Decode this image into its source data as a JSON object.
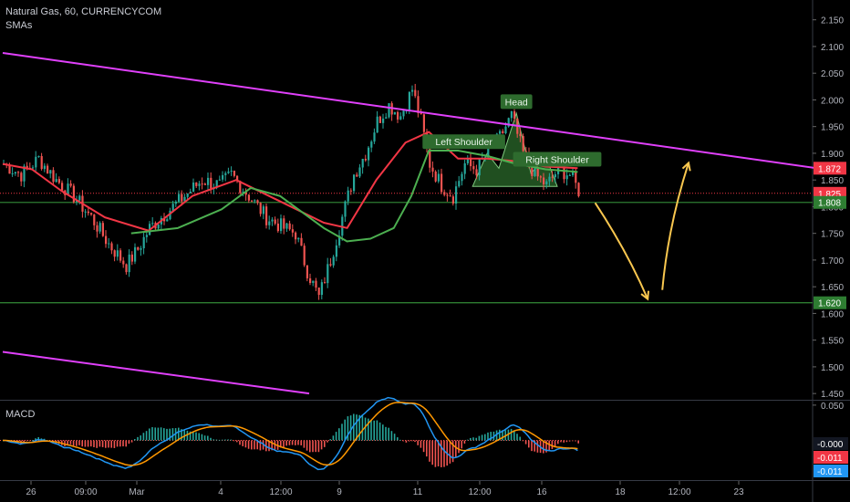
{
  "header": {
    "symbol_line": "Natural Gas, 60, CURRENCYCOM",
    "indicator_label": "SMAs"
  },
  "macd_panel": {
    "title": "MACD"
  },
  "colors": {
    "background": "#000000",
    "candle_up": "#26a69a",
    "candle_down": "#ef5350",
    "sma_fast": "#f23645",
    "sma_slow": "#4caf50",
    "trendline": "#e040fb",
    "support_line": "#2e7d32",
    "arrow": "#f9c74f",
    "pattern_fill": "#3b8f3b",
    "label_bg": "#2e6b2e"
  },
  "chart_data": [
    {
      "type": "candlestick",
      "title": "Natural Gas, 60, CURRENCYCOM",
      "y_ticks": [
        "2.150",
        "2.100",
        "2.050",
        "2.000",
        "1.950",
        "1.900",
        "1.850",
        "1.800",
        "1.750",
        "1.700",
        "1.650",
        "1.600",
        "1.550",
        "1.500",
        "1.450"
      ],
      "ylim": [
        1.44,
        2.17
      ],
      "x_ticks": [
        "26",
        "09:00",
        "Mar",
        "4",
        "12:00",
        "9",
        "11",
        "12:00",
        "16",
        "18",
        "12:00",
        "23"
      ],
      "price_badges": [
        {
          "value": 1.872,
          "label": "1.872",
          "color": "#f23645"
        },
        {
          "value": 1.825,
          "label": "1.825",
          "color": "#f23645"
        },
        {
          "value": 1.808,
          "label": "1.808",
          "color": "#2e7d32"
        },
        {
          "value": 1.62,
          "label": "1.620",
          "color": "#2e7d32"
        }
      ],
      "anchors": [
        [
          0,
          1.88
        ],
        [
          6,
          1.86
        ],
        [
          12,
          1.89
        ],
        [
          18,
          1.85
        ],
        [
          24,
          1.82
        ],
        [
          30,
          1.78
        ],
        [
          36,
          1.73
        ],
        [
          42,
          1.69
        ],
        [
          46,
          1.72
        ],
        [
          50,
          1.76
        ],
        [
          56,
          1.79
        ],
        [
          62,
          1.82
        ],
        [
          68,
          1.85
        ],
        [
          74,
          1.84
        ],
        [
          78,
          1.86
        ],
        [
          84,
          1.82
        ],
        [
          90,
          1.78
        ],
        [
          96,
          1.76
        ],
        [
          100,
          1.75
        ],
        [
          104,
          1.68
        ],
        [
          108,
          1.63
        ],
        [
          112,
          1.7
        ],
        [
          116,
          1.78
        ],
        [
          120,
          1.86
        ],
        [
          124,
          1.9
        ],
        [
          128,
          1.96
        ],
        [
          132,
          1.99
        ],
        [
          136,
          1.97
        ],
        [
          140,
          2.02
        ],
        [
          143,
          1.96
        ],
        [
          146,
          1.88
        ],
        [
          150,
          1.84
        ],
        [
          154,
          1.82
        ],
        [
          158,
          1.88
        ],
        [
          162,
          1.87
        ],
        [
          166,
          1.9
        ],
        [
          170,
          1.93
        ],
        [
          174,
          1.97
        ],
        [
          178,
          1.9
        ],
        [
          182,
          1.86
        ],
        [
          186,
          1.84
        ],
        [
          190,
          1.87
        ],
        [
          194,
          1.86
        ],
        [
          197,
          1.83
        ]
      ],
      "sma_fast": [
        [
          0,
          1.88
        ],
        [
          10,
          1.87
        ],
        [
          20,
          1.83
        ],
        [
          35,
          1.78
        ],
        [
          50,
          1.755
        ],
        [
          65,
          1.82
        ],
        [
          80,
          1.85
        ],
        [
          95,
          1.81
        ],
        [
          110,
          1.77
        ],
        [
          118,
          1.76
        ],
        [
          128,
          1.85
        ],
        [
          138,
          1.92
        ],
        [
          146,
          1.94
        ],
        [
          156,
          1.89
        ],
        [
          166,
          1.89
        ],
        [
          176,
          1.885
        ],
        [
          186,
          1.875
        ],
        [
          197,
          1.872
        ]
      ],
      "sma_slow": [
        [
          44,
          1.75
        ],
        [
          60,
          1.76
        ],
        [
          75,
          1.795
        ],
        [
          85,
          1.835
        ],
        [
          95,
          1.82
        ],
        [
          110,
          1.76
        ],
        [
          118,
          1.735
        ],
        [
          126,
          1.74
        ],
        [
          134,
          1.76
        ],
        [
          140,
          1.82
        ],
        [
          146,
          1.905
        ],
        [
          156,
          1.905
        ],
        [
          166,
          1.895
        ],
        [
          176,
          1.88
        ],
        [
          186,
          1.87
        ],
        [
          197,
          1.865
        ]
      ],
      "trendlines": [
        {
          "from": [
            0,
            2.088
          ],
          "to": [
            279,
            1.872
          ]
        },
        {
          "from": [
            0,
            1.528
          ],
          "to": [
            105,
            1.45
          ]
        }
      ],
      "horizontal_lines": [
        1.808,
        1.62
      ],
      "pattern_annotations": [
        {
          "label": "Left Shoulder",
          "at": [
            158,
            1.92
          ]
        },
        {
          "label": "Head",
          "at": [
            176,
            1.995
          ]
        },
        {
          "label": "Right Shoulder",
          "at": [
            190,
            1.887
          ]
        }
      ],
      "projection_arrows": [
        {
          "from": [
            203,
            1.807
          ],
          "to": [
            221,
            1.627
          ]
        },
        {
          "from": [
            226,
            1.644
          ],
          "to": [
            235,
            1.882
          ]
        }
      ],
      "grid": false
    },
    {
      "type": "macd",
      "title": "MACD",
      "y_ticks": [
        "0.050"
      ],
      "ylim": [
        -0.055,
        0.055
      ],
      "value_badges": [
        {
          "label": "-0.000",
          "color": "#131722"
        },
        {
          "label": "-0.011",
          "color": "#f23645"
        },
        {
          "label": "-0.011",
          "color": "#2196f3"
        }
      ]
    }
  ]
}
